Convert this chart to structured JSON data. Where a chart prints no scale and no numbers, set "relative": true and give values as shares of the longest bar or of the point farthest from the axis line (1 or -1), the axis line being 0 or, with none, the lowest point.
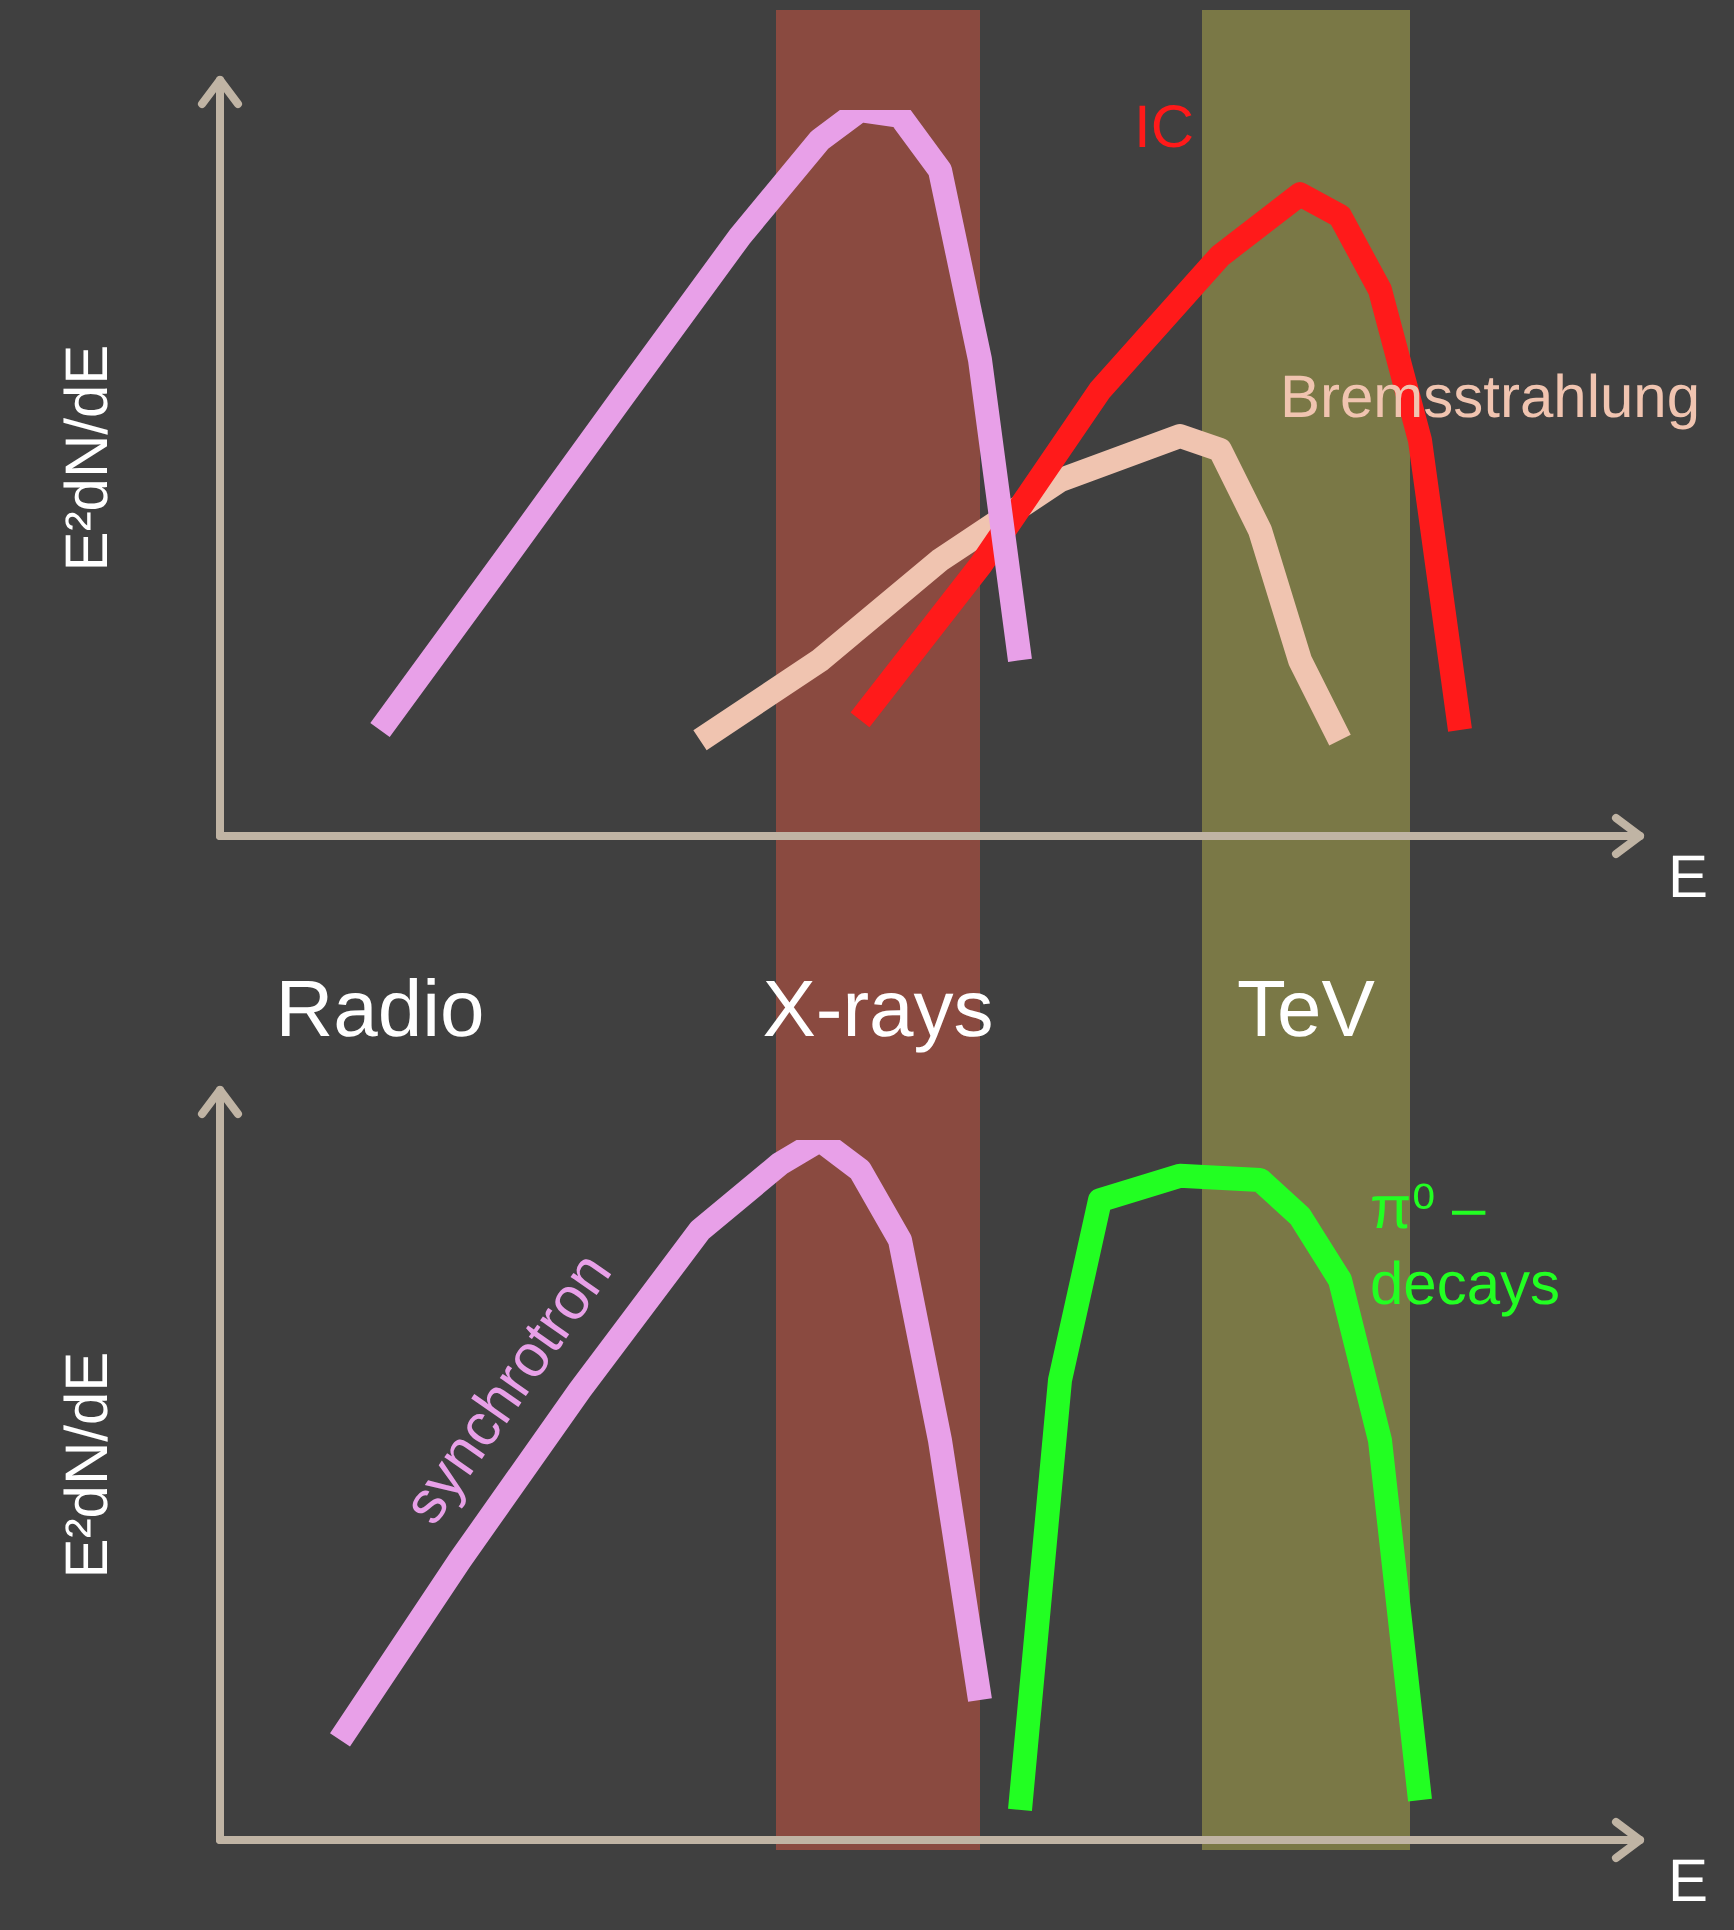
{
  "chart_data": [
    {
      "type": "line",
      "relative": true,
      "xlabel": "E",
      "ylabel": "E²dN/dE",
      "legend": false,
      "marker": "none",
      "tick_labels": false,
      "categories": [
        null,
        null,
        null,
        null,
        null,
        null,
        null,
        null,
        null,
        null,
        null,
        null,
        null,
        null,
        null,
        null,
        null,
        null,
        null,
        null,
        null,
        null,
        null,
        null,
        null,
        null,
        null,
        null,
        null,
        null,
        null,
        null,
        null,
        null,
        null,
        null
      ],
      "series": [
        {
          "color": "#e8a0e8",
          "values": [
            null,
            null,
            null,
            null,
            0.146,
            null,
            null,
            0.372,
            null,
            null,
            0.6,
            null,
            null,
            0.826,
            null,
            0.959,
            1.0,
            0.992,
            0.917,
            0.656,
            0.242,
            null,
            null,
            null,
            null,
            null,
            null,
            null,
            null,
            null,
            null,
            null,
            null,
            null,
            null,
            null
          ]
        },
        {
          "name": "IC",
          "color": "#ff1a1a",
          "values": [
            null,
            null,
            null,
            null,
            null,
            null,
            null,
            null,
            null,
            null,
            null,
            null,
            null,
            null,
            null,
            null,
            0.16,
            null,
            null,
            0.372,
            null,
            null,
            0.614,
            null,
            null,
            0.799,
            null,
            0.884,
            0.854,
            0.752,
            0.545,
            0.146,
            null,
            null,
            null,
            null
          ]
        },
        {
          "name": "Bremsstrahlung",
          "color": "#f0c4b0",
          "values": [
            null,
            null,
            null,
            null,
            null,
            null,
            null,
            null,
            null,
            null,
            null,
            null,
            0.132,
            null,
            null,
            0.242,
            null,
            null,
            0.38,
            null,
            null,
            0.49,
            null,
            null,
            0.551,
            0.532,
            0.421,
            0.242,
            0.132,
            null,
            null,
            null,
            null,
            null,
            null,
            null
          ]
        }
      ]
    },
    {
      "type": "line",
      "relative": true,
      "xlabel": "E",
      "ylabel": "E²dN/dE",
      "legend": false,
      "marker": "none",
      "tick_labels": false,
      "categories": [
        null,
        null,
        null,
        null,
        null,
        null,
        null,
        null,
        null,
        null,
        null,
        null,
        null,
        null,
        null,
        null,
        null,
        null,
        null,
        null,
        null,
        null,
        null,
        null,
        null,
        null,
        null,
        null,
        null,
        null,
        null,
        null,
        null,
        null,
        null,
        null
      ],
      "series": [
        {
          "name": "synchrotron",
          "color": "#e8a0e8",
          "values": [
            null,
            null,
            null,
            0.143,
            null,
            null,
            0.4,
            null,
            null,
            0.643,
            null,
            null,
            0.871,
            null,
            0.966,
            1.0,
            0.957,
            0.857,
            0.571,
            0.2,
            null,
            null,
            null,
            null,
            null,
            null,
            null,
            null,
            null,
            null,
            null,
            null,
            null,
            null,
            null,
            null
          ]
        },
        {
          "name": "π⁰ – decays",
          "color": "#22ff22",
          "values": [
            null,
            null,
            null,
            null,
            null,
            null,
            null,
            null,
            null,
            null,
            null,
            null,
            null,
            null,
            null,
            null,
            null,
            null,
            null,
            null,
            0.043,
            0.657,
            0.914,
            null,
            0.949,
            null,
            0.943,
            0.891,
            0.8,
            0.571,
            0.057,
            null,
            null,
            null,
            null,
            null
          ]
        }
      ],
      "annotations": [
        "Radio",
        "X-rays",
        "TeV"
      ]
    }
  ]
}
